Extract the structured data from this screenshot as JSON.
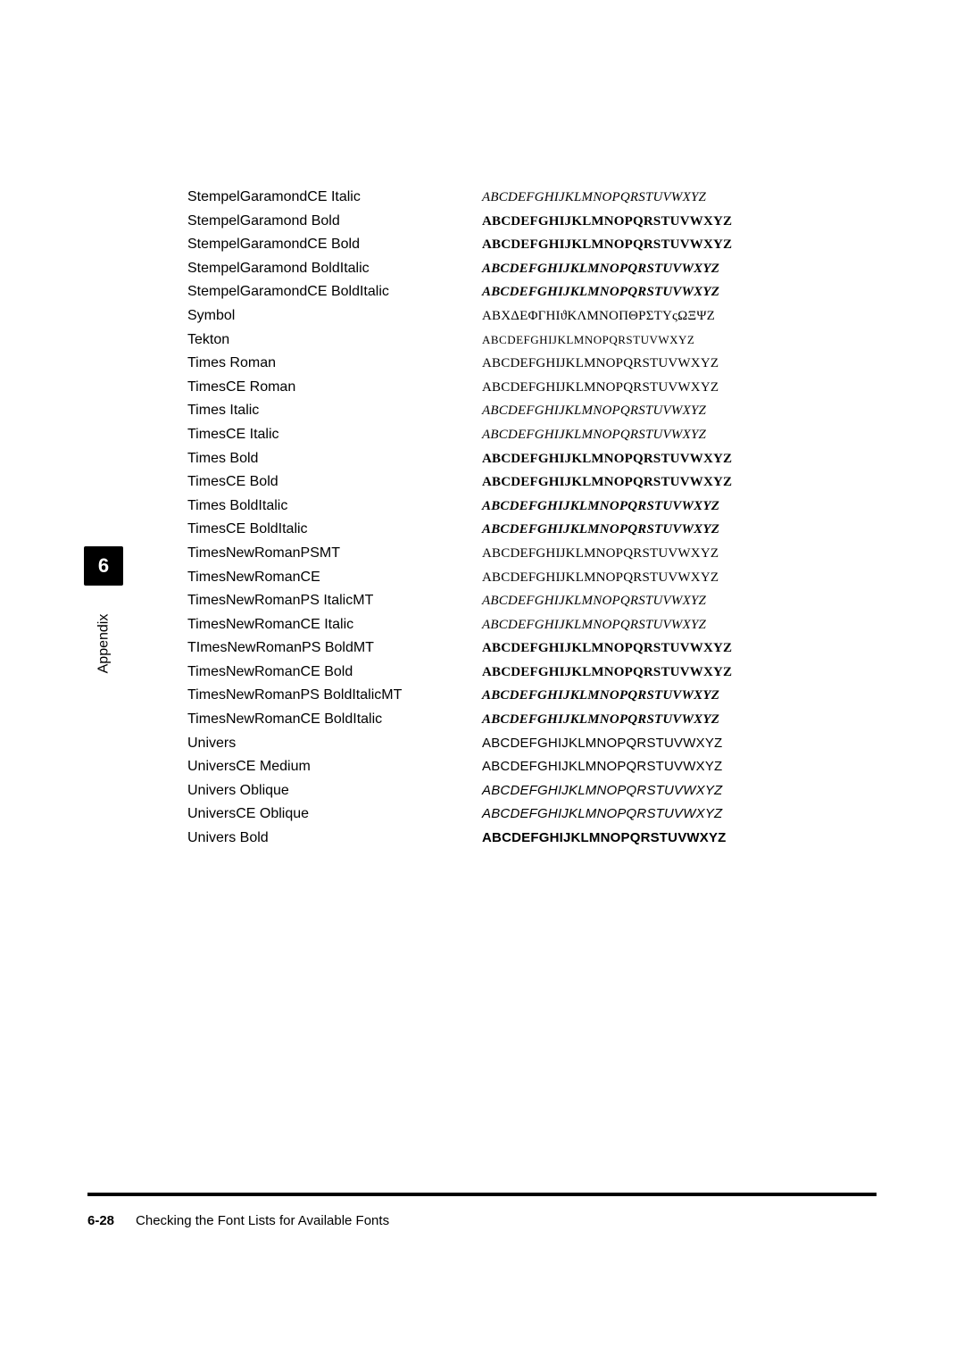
{
  "sideTab": {
    "chapter": "6",
    "label": "Appendix"
  },
  "footer": {
    "pageNum": "6-28",
    "title": "Checking the Font Lists for Available Fonts"
  },
  "alphabet": "ABCDEFGHIJKLMNOPQRSTUVWXYZ",
  "symbolAlphabet": "ΑΒΧΔΕΦΓΗΙϑΚΛΜΝΟΠΘΡΣΤΥςΩΞΨΖ",
  "fonts": [
    {
      "name": "StempelGaramondCE Italic",
      "family": "ff-garamond",
      "weight": "w-reg",
      "style": "s-italic",
      "sampleKey": "alphabet"
    },
    {
      "name": "StempelGaramond Bold",
      "family": "ff-garamond",
      "weight": "w-bold",
      "style": "",
      "sampleKey": "alphabet"
    },
    {
      "name": "StempelGaramondCE Bold",
      "family": "ff-garamond",
      "weight": "w-bold",
      "style": "",
      "sampleKey": "alphabet"
    },
    {
      "name": "StempelGaramond BoldItalic",
      "family": "ff-garamond",
      "weight": "w-bold",
      "style": "s-italic",
      "sampleKey": "alphabet"
    },
    {
      "name": "StempelGaramondCE BoldItalic",
      "family": "ff-garamond",
      "weight": "w-bold",
      "style": "s-italic",
      "sampleKey": "alphabet"
    },
    {
      "name": "Symbol",
      "family": "ff-symbol",
      "weight": "w-reg",
      "style": "",
      "sampleKey": "symbolAlphabet"
    },
    {
      "name": "Tekton",
      "family": "ff-tekton",
      "weight": "w-reg",
      "style": "",
      "sampleKey": "alphabet"
    },
    {
      "name": "Times Roman",
      "family": "ff-times",
      "weight": "w-reg",
      "style": "",
      "sampleKey": "alphabet"
    },
    {
      "name": "TimesCE Roman",
      "family": "ff-times",
      "weight": "w-reg",
      "style": "",
      "sampleKey": "alphabet"
    },
    {
      "name": "Times Italic",
      "family": "ff-times",
      "weight": "w-reg",
      "style": "s-italic",
      "sampleKey": "alphabet"
    },
    {
      "name": "TimesCE Italic",
      "family": "ff-times",
      "weight": "w-reg",
      "style": "s-italic",
      "sampleKey": "alphabet"
    },
    {
      "name": "Times Bold",
      "family": "ff-times",
      "weight": "w-bold",
      "style": "",
      "sampleKey": "alphabet"
    },
    {
      "name": "TimesCE Bold",
      "family": "ff-times",
      "weight": "w-bold",
      "style": "",
      "sampleKey": "alphabet"
    },
    {
      "name": "Times BoldItalic",
      "family": "ff-times",
      "weight": "w-bold",
      "style": "s-italic",
      "sampleKey": "alphabet"
    },
    {
      "name": "TimesCE BoldItalic",
      "family": "ff-times",
      "weight": "w-bold",
      "style": "s-italic",
      "sampleKey": "alphabet"
    },
    {
      "name": "TimesNewRomanPSMT",
      "family": "ff-times",
      "weight": "w-reg",
      "style": "",
      "sampleKey": "alphabet"
    },
    {
      "name": "TimesNewRomanCE",
      "family": "ff-times",
      "weight": "w-reg",
      "style": "",
      "sampleKey": "alphabet"
    },
    {
      "name": "TimesNewRomanPS ItalicMT",
      "family": "ff-times",
      "weight": "w-reg",
      "style": "s-italic",
      "sampleKey": "alphabet"
    },
    {
      "name": "TimesNewRomanCE Italic",
      "family": "ff-times",
      "weight": "w-reg",
      "style": "s-italic",
      "sampleKey": "alphabet"
    },
    {
      "name": "TImesNewRomanPS BoldMT",
      "family": "ff-times",
      "weight": "w-bold",
      "style": "",
      "sampleKey": "alphabet"
    },
    {
      "name": "TimesNewRomanCE Bold",
      "family": "ff-times",
      "weight": "w-bold",
      "style": "",
      "sampleKey": "alphabet"
    },
    {
      "name": "TimesNewRomanPS BoldItalicMT",
      "family": "ff-times",
      "weight": "w-bold",
      "style": "s-italic",
      "sampleKey": "alphabet"
    },
    {
      "name": "TimesNewRomanCE BoldItalic",
      "family": "ff-times",
      "weight": "w-bold",
      "style": "s-italic",
      "sampleKey": "alphabet"
    },
    {
      "name": "Univers",
      "family": "ff-univers",
      "weight": "w-reg",
      "style": "",
      "sampleKey": "alphabet"
    },
    {
      "name": "UniversCE Medium",
      "family": "ff-univers",
      "weight": "w-reg",
      "style": "",
      "sampleKey": "alphabet"
    },
    {
      "name": "Univers Oblique",
      "family": "ff-univers",
      "weight": "w-reg",
      "style": "s-italic",
      "sampleKey": "alphabet"
    },
    {
      "name": "UniversCE Oblique",
      "family": "ff-univers",
      "weight": "w-reg",
      "style": "s-italic",
      "sampleKey": "alphabet"
    },
    {
      "name": "Univers Bold",
      "family": "ff-univers",
      "weight": "w-bold",
      "style": "",
      "sampleKey": "alphabet"
    }
  ]
}
